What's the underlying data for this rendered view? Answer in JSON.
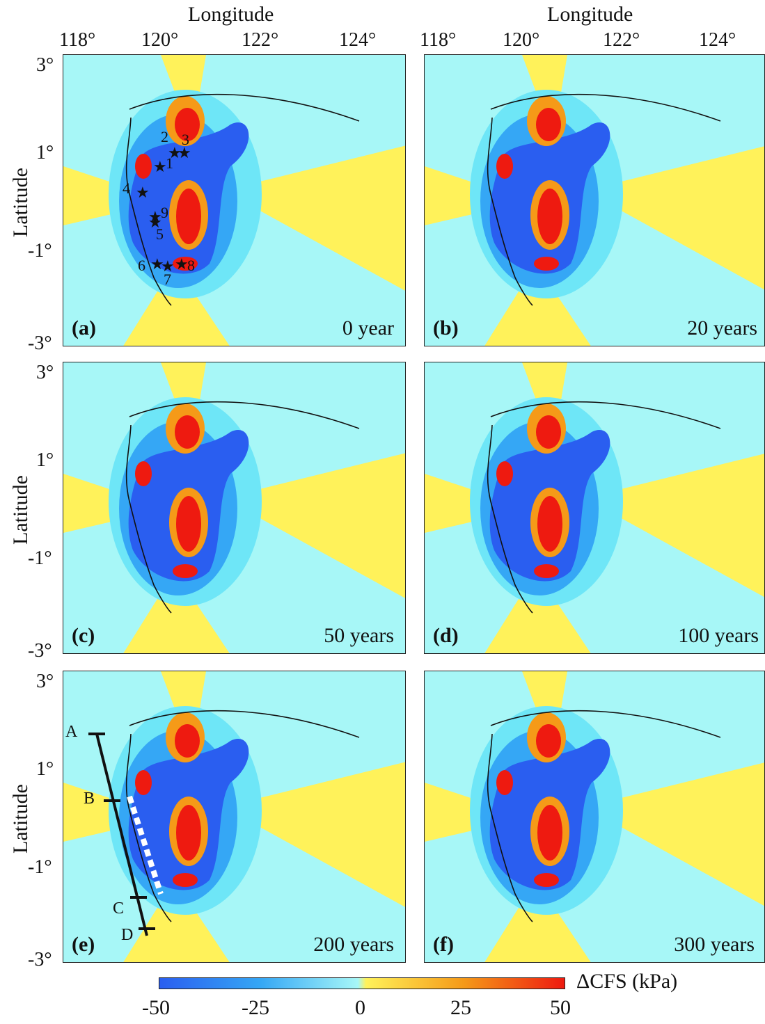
{
  "axes": {
    "longitude_label": "Longitude",
    "latitude_label": "Latitude",
    "lon_ticks": [
      "118°",
      "120°",
      "122°",
      "124°"
    ],
    "lat_ticks": [
      "3°",
      "1°",
      "-1°",
      "-3°"
    ]
  },
  "panels": [
    {
      "label": "(a)",
      "time": "0 year"
    },
    {
      "label": "(b)",
      "time": "20 years"
    },
    {
      "label": "(c)",
      "time": "50 years"
    },
    {
      "label": "(d)",
      "time": "100 years"
    },
    {
      "label": "(e)",
      "time": "200 years"
    },
    {
      "label": "(f)",
      "time": "300 years"
    }
  ],
  "epicenters": [
    "1",
    "2",
    "3",
    "4",
    "5",
    "6",
    "7",
    "8",
    "9"
  ],
  "profile_labels": [
    "A",
    "B",
    "C",
    "D"
  ],
  "colorbar": {
    "title": "ΔCFS (kPa)",
    "ticks": [
      "-50",
      "-25",
      "0",
      "25",
      "50"
    ],
    "colors": [
      "#2a5ef0",
      "#35a7f5",
      "#a7f7f7",
      "#fff25a",
      "#f59a18",
      "#ee1a10"
    ]
  }
}
